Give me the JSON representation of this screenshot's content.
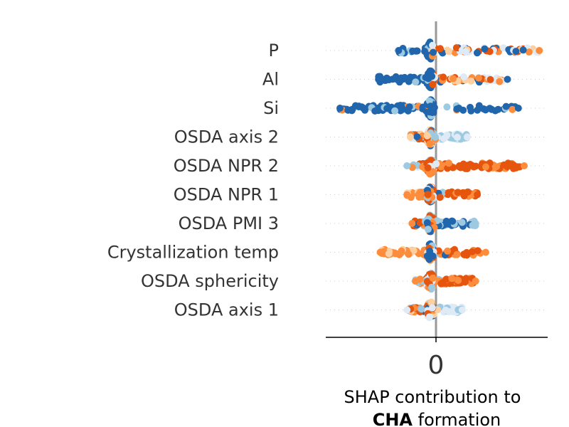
{
  "chart_data": {
    "type": "scatter",
    "subtype": "shap-beeswarm",
    "features": [
      {
        "name": "P",
        "range": [
          -0.38,
          1.3
        ],
        "dominant": "blue-left-orange-right"
      },
      {
        "name": "Al",
        "range": [
          -0.62,
          0.92
        ],
        "dominant": "blue-left-orange-right"
      },
      {
        "name": "Si",
        "range": [
          -1.08,
          1.05
        ],
        "dominant": "blue-both"
      },
      {
        "name": "OSDA axis 2",
        "range": [
          -0.24,
          0.44
        ],
        "dominant": "mixed-light"
      },
      {
        "name": "OSDA NPR 2",
        "range": [
          -0.28,
          1.12
        ],
        "dominant": "orange-right"
      },
      {
        "name": "OSDA NPR 1",
        "range": [
          -0.28,
          0.56
        ],
        "dominant": "orange-mixed"
      },
      {
        "name": "OSDA PMI 3",
        "range": [
          -0.22,
          0.54
        ],
        "dominant": "blue-right"
      },
      {
        "name": "Crystallization temp",
        "range": [
          -0.6,
          0.66
        ],
        "dominant": "orange-mixed"
      },
      {
        "name": "OSDA sphericity",
        "range": [
          -0.18,
          0.54
        ],
        "dominant": "orange-right"
      },
      {
        "name": "OSDA axis 1",
        "range": [
          -0.28,
          0.38
        ],
        "dominant": "mixed-light"
      }
    ],
    "x_ticks": [
      "0"
    ],
    "x_tick_values": [
      0
    ],
    "xlim": [
      -1.25,
      1.4
    ],
    "xlabel_line1": "SHAP contribution to",
    "xlabel_bold": "CHA",
    "xlabel_rest": " formation",
    "grid": "dotted-row-lines",
    "colors": {
      "blue": "#2166ac",
      "light_blue": "#9ecae1",
      "pale": "#deebf7",
      "orange": "#fd8d3c",
      "dark_orange": "#e6550d",
      "light_orange": "#fdd0a2",
      "zero_line": "#999999"
    }
  }
}
